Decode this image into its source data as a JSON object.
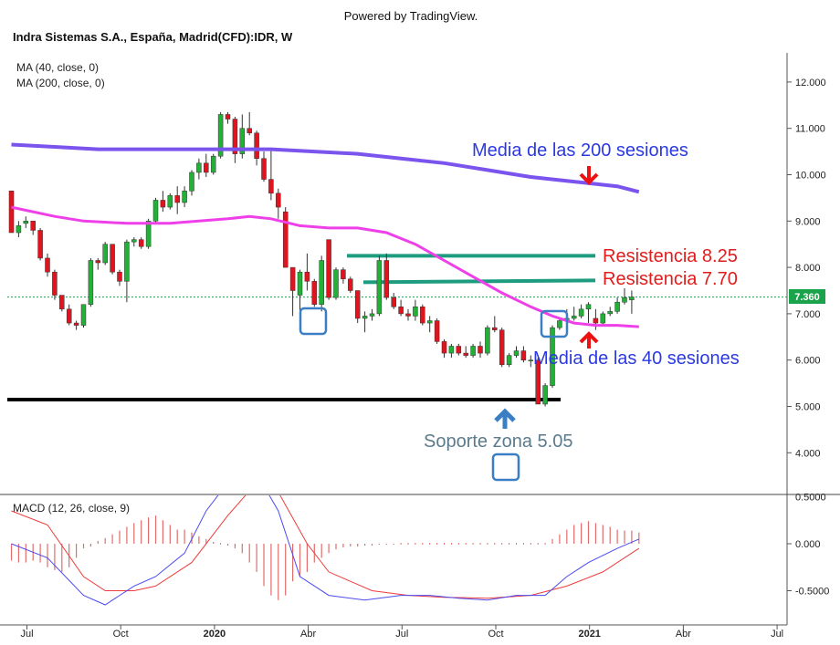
{
  "header": {
    "powered_by": "Powered by TradingView.",
    "title": "Indra Sistemas S.A., España, Madrid(CFD):IDR, W"
  },
  "chart_data": {
    "type": "candlestick",
    "title": "Indra Sistemas S.A., España, Madrid(CFD):IDR, W",
    "legend": [
      "MA (40, close, 0)",
      "MA (200, close, 0)"
    ],
    "last_price_label": "7.360",
    "last_price": 7.36,
    "price_axis": {
      "ticks": [
        4.0,
        5.0,
        6.0,
        7.0,
        8.0,
        9.0,
        10.0,
        11.0,
        12.0
      ],
      "tick_labels": [
        "4.000",
        "5.000",
        "6.000",
        "7.000",
        "8.000",
        "9.000",
        "10.000",
        "11.000",
        "12.000"
      ]
    },
    "time_axis": {
      "labels": [
        {
          "text": "Jul",
          "week": 0,
          "bold": false
        },
        {
          "text": "Oct",
          "week": 13,
          "bold": false
        },
        {
          "text": "2020",
          "week": 26,
          "bold": true
        },
        {
          "text": "Abr",
          "week": 39,
          "bold": false
        },
        {
          "text": "Jul",
          "week": 52,
          "bold": false
        },
        {
          "text": "Oct",
          "week": 65,
          "bold": false
        },
        {
          "text": "2021",
          "week": 78,
          "bold": true
        },
        {
          "text": "Abr",
          "week": 91,
          "bold": false
        },
        {
          "text": "Jul",
          "week": 104,
          "bold": false
        }
      ]
    },
    "candles": [
      [
        9.65,
        9.65,
        8.75,
        8.75
      ],
      [
        8.75,
        9.0,
        8.65,
        8.9
      ],
      [
        8.95,
        9.1,
        8.85,
        9.0
      ],
      [
        9.0,
        9.0,
        8.7,
        8.8
      ],
      [
        8.8,
        8.85,
        8.15,
        8.2
      ],
      [
        8.2,
        8.3,
        7.8,
        7.9
      ],
      [
        7.9,
        7.95,
        7.3,
        7.4
      ],
      [
        7.4,
        7.4,
        7.05,
        7.1
      ],
      [
        7.1,
        7.2,
        6.75,
        6.8
      ],
      [
        6.8,
        6.85,
        6.65,
        6.75
      ],
      [
        6.75,
        7.2,
        6.7,
        7.2
      ],
      [
        7.2,
        8.2,
        7.15,
        8.15
      ],
      [
        8.15,
        8.2,
        7.95,
        8.1
      ],
      [
        8.1,
        8.55,
        8.05,
        8.5
      ],
      [
        8.5,
        8.5,
        7.85,
        7.9
      ],
      [
        7.9,
        7.95,
        7.6,
        7.7
      ],
      [
        7.7,
        8.6,
        7.25,
        8.55
      ],
      [
        8.55,
        8.65,
        8.45,
        8.6
      ],
      [
        8.6,
        8.65,
        8.4,
        8.45
      ],
      [
        8.45,
        9.05,
        8.4,
        9.0
      ],
      [
        9.0,
        9.5,
        8.95,
        9.45
      ],
      [
        9.45,
        9.65,
        9.2,
        9.3
      ],
      [
        9.3,
        9.6,
        9.25,
        9.55
      ],
      [
        9.55,
        9.75,
        9.15,
        9.4
      ],
      [
        9.4,
        9.75,
        9.3,
        9.65
      ],
      [
        9.65,
        10.1,
        9.55,
        10.05
      ],
      [
        10.05,
        10.35,
        9.9,
        10.25
      ],
      [
        10.25,
        10.45,
        9.95,
        10.05
      ],
      [
        10.05,
        10.45,
        10.0,
        10.4
      ],
      [
        10.4,
        11.35,
        10.35,
        11.3
      ],
      [
        11.3,
        11.35,
        11.1,
        11.2
      ],
      [
        11.2,
        11.25,
        10.25,
        10.45
      ],
      [
        10.45,
        11.3,
        10.35,
        11.0
      ],
      [
        11.0,
        11.35,
        10.85,
        10.9
      ],
      [
        10.9,
        10.95,
        10.2,
        10.35
      ],
      [
        10.35,
        10.5,
        9.85,
        9.9
      ],
      [
        9.9,
        10.55,
        9.45,
        9.6
      ],
      [
        9.6,
        9.7,
        9.05,
        9.3
      ],
      [
        9.2,
        9.3,
        8.05,
        8.0
      ],
      [
        8.0,
        8.0,
        6.95,
        7.5
      ],
      [
        7.4,
        7.95,
        7.05,
        7.9
      ],
      [
        7.9,
        8.3,
        7.5,
        7.7
      ],
      [
        7.7,
        7.75,
        7.15,
        7.2
      ],
      [
        7.2,
        8.25,
        7.05,
        8.15
      ],
      [
        8.6,
        8.6,
        7.3,
        7.35
      ],
      [
        7.35,
        8.0,
        7.3,
        7.95
      ],
      [
        7.95,
        8.0,
        7.65,
        7.75
      ],
      [
        7.75,
        7.8,
        7.45,
        7.5
      ],
      [
        7.5,
        7.5,
        6.8,
        6.9
      ],
      [
        6.9,
        7.05,
        6.6,
        6.95
      ],
      [
        6.95,
        7.1,
        6.85,
        7.0
      ],
      [
        7.0,
        8.25,
        6.95,
        8.15
      ],
      [
        8.15,
        8.3,
        7.3,
        7.35
      ],
      [
        7.35,
        7.45,
        7.1,
        7.15
      ],
      [
        7.15,
        7.3,
        6.95,
        7.0
      ],
      [
        7.0,
        7.1,
        6.85,
        6.95
      ],
      [
        6.95,
        7.3,
        6.85,
        7.15
      ],
      [
        7.15,
        7.2,
        6.75,
        6.8
      ],
      [
        6.8,
        6.95,
        6.6,
        6.85
      ],
      [
        6.85,
        6.9,
        6.35,
        6.4
      ],
      [
        6.4,
        6.45,
        6.05,
        6.15
      ],
      [
        6.15,
        6.35,
        6.05,
        6.3
      ],
      [
        6.3,
        6.35,
        6.1,
        6.15
      ],
      [
        6.15,
        6.3,
        6.05,
        6.1
      ],
      [
        6.1,
        6.35,
        6.05,
        6.3
      ],
      [
        6.3,
        6.4,
        6.05,
        6.15
      ],
      [
        6.15,
        6.75,
        6.1,
        6.7
      ],
      [
        6.7,
        6.95,
        6.6,
        6.65
      ],
      [
        6.65,
        6.7,
        5.85,
        5.9
      ],
      [
        5.9,
        6.15,
        5.85,
        6.1
      ],
      [
        6.1,
        6.3,
        6.05,
        6.2
      ],
      [
        6.2,
        6.3,
        5.95,
        6.0
      ],
      [
        6.0,
        6.1,
        5.85,
        6.0
      ],
      [
        6.0,
        6.05,
        5.05,
        5.05
      ],
      [
        5.05,
        5.5,
        5.0,
        5.45
      ],
      [
        5.45,
        6.75,
        5.4,
        6.7
      ],
      [
        6.7,
        6.9,
        6.65,
        6.85
      ],
      [
        6.85,
        7.1,
        6.75,
        6.9
      ],
      [
        6.9,
        7.15,
        6.85,
        6.95
      ],
      [
        6.95,
        7.2,
        6.9,
        7.1
      ],
      [
        7.1,
        7.25,
        6.8,
        7.2
      ],
      [
        6.9,
        7.1,
        6.65,
        6.8
      ],
      [
        6.8,
        7.05,
        6.75,
        7.0
      ],
      [
        7.0,
        7.15,
        6.95,
        7.05
      ],
      [
        7.05,
        7.35,
        7.0,
        7.25
      ],
      [
        7.25,
        7.55,
        7.2,
        7.35
      ],
      [
        7.3,
        7.5,
        7.0,
        7.36
      ]
    ],
    "ma40": [
      [
        0,
        9.3
      ],
      [
        6,
        9.1
      ],
      [
        10,
        9.0
      ],
      [
        16,
        8.95
      ],
      [
        22,
        8.95
      ],
      [
        26,
        9.0
      ],
      [
        30,
        9.05
      ],
      [
        33,
        9.1
      ],
      [
        36,
        9.05
      ],
      [
        40,
        8.9
      ],
      [
        44,
        8.85
      ],
      [
        48,
        8.85
      ],
      [
        52,
        8.75
      ],
      [
        56,
        8.5
      ],
      [
        60,
        8.15
      ],
      [
        64,
        7.8
      ],
      [
        68,
        7.45
      ],
      [
        72,
        7.15
      ],
      [
        75,
        6.95
      ],
      [
        78,
        6.8
      ],
      [
        81,
        6.75
      ],
      [
        84,
        6.75
      ],
      [
        87,
        6.72
      ]
    ],
    "ma200": [
      [
        0,
        10.65
      ],
      [
        6,
        10.6
      ],
      [
        12,
        10.55
      ],
      [
        18,
        10.55
      ],
      [
        24,
        10.55
      ],
      [
        30,
        10.55
      ],
      [
        36,
        10.55
      ],
      [
        42,
        10.5
      ],
      [
        48,
        10.45
      ],
      [
        54,
        10.35
      ],
      [
        60,
        10.25
      ],
      [
        66,
        10.1
      ],
      [
        72,
        9.95
      ],
      [
        78,
        9.85
      ],
      [
        84,
        9.75
      ],
      [
        87,
        9.63
      ]
    ],
    "annotations": [
      {
        "text": "Media de las 200 sesiones",
        "color": "#2b3ae0"
      },
      {
        "text": "Resistencia 8.25",
        "color": "#e31b1b"
      },
      {
        "text": "Resistencia 7.70",
        "color": "#e31b1b"
      },
      {
        "text": "Media de las 40 sesiones",
        "color": "#2b3ae0"
      },
      {
        "text": "Soporte zona 5.05",
        "color": "#5b7b8c"
      }
    ],
    "levels": [
      {
        "value": 8.25,
        "color": "#1e9c80"
      },
      {
        "value": 7.7,
        "color": "#1e9c80"
      },
      {
        "value": 5.05,
        "color": "#000000"
      }
    ],
    "macd": {
      "legend": "MACD (12, 26, close, 9)",
      "ticks": [
        0.5,
        0.0,
        -0.5
      ],
      "tick_labels": [
        "0.5000",
        "0.000",
        "-0.5000"
      ],
      "macd_line": [
        [
          0,
          0.0
        ],
        [
          5,
          -0.15
        ],
        [
          10,
          -0.55
        ],
        [
          13,
          -0.65
        ],
        [
          17,
          -0.45
        ],
        [
          20,
          -0.35
        ],
        [
          24,
          -0.1
        ],
        [
          27,
          0.35
        ],
        [
          30,
          0.65
        ],
        [
          34,
          0.75
        ],
        [
          37,
          0.35
        ],
        [
          40,
          -0.35
        ],
        [
          44,
          -0.55
        ],
        [
          49,
          -0.6
        ],
        [
          54,
          -0.55
        ],
        [
          58,
          -0.55
        ],
        [
          62,
          -0.58
        ],
        [
          66,
          -0.6
        ],
        [
          70,
          -0.55
        ],
        [
          74,
          -0.55
        ],
        [
          77,
          -0.35
        ],
        [
          80,
          -0.2
        ],
        [
          84,
          -0.05
        ],
        [
          87,
          0.05
        ]
      ],
      "signal_line": [
        [
          0,
          0.35
        ],
        [
          5,
          0.2
        ],
        [
          10,
          -0.35
        ],
        [
          13,
          -0.5
        ],
        [
          17,
          -0.5
        ],
        [
          20,
          -0.45
        ],
        [
          25,
          -0.2
        ],
        [
          30,
          0.3
        ],
        [
          34,
          0.65
        ],
        [
          37,
          0.55
        ],
        [
          41,
          0.0
        ],
        [
          44,
          -0.3
        ],
        [
          50,
          -0.5
        ],
        [
          55,
          -0.55
        ],
        [
          60,
          -0.57
        ],
        [
          66,
          -0.58
        ],
        [
          72,
          -0.55
        ],
        [
          77,
          -0.45
        ],
        [
          82,
          -0.3
        ],
        [
          87,
          -0.05
        ]
      ],
      "histogram": [
        -0.18,
        -0.2,
        -0.2,
        -0.18,
        -0.2,
        -0.25,
        -0.28,
        -0.3,
        -0.25,
        -0.15,
        -0.05,
        -0.03,
        0.03,
        0.06,
        0.1,
        0.14,
        0.18,
        0.22,
        0.25,
        0.28,
        0.3,
        0.25,
        0.2,
        0.15,
        0.15,
        0.12,
        0.08,
        0.05,
        0.02,
        0.0,
        -0.02,
        -0.05,
        -0.1,
        -0.2,
        -0.3,
        -0.45,
        -0.55,
        -0.6,
        -0.55,
        -0.4,
        -0.35,
        -0.3,
        -0.2,
        -0.15,
        -0.1,
        -0.06,
        -0.04,
        -0.03,
        -0.03,
        -0.02,
        -0.02,
        -0.01,
        -0.01,
        -0.01,
        0.0,
        0.0,
        0.0,
        0.0,
        0.0,
        0.0,
        0.0,
        0.0,
        0.0,
        0.0,
        0.0,
        0.0,
        0.0,
        0.0,
        0.0,
        0.0,
        0.0,
        0.0,
        0.0,
        0.0,
        0.0,
        0.05,
        0.1,
        0.15,
        0.2,
        0.22,
        0.24,
        0.22,
        0.2,
        0.18,
        0.15,
        0.14,
        0.14,
        0.12
      ]
    }
  }
}
